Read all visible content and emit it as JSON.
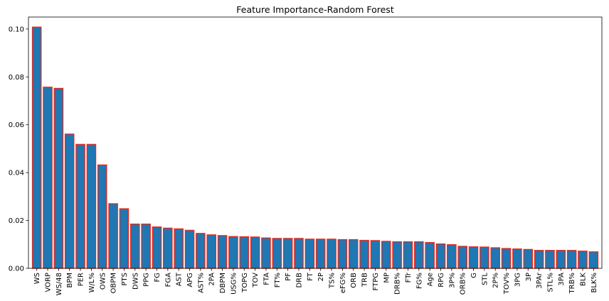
{
  "chart_data": {
    "type": "bar",
    "title": "Feature Importance-Random Forest",
    "xlabel": "",
    "ylabel": "",
    "ylim": [
      0,
      0.105
    ],
    "yticks": [
      "0.00",
      "0.02",
      "0.04",
      "0.06",
      "0.08",
      "0.10"
    ],
    "ytick_values": [
      0,
      0.02,
      0.04,
      0.06,
      0.08,
      0.1
    ],
    "bar_fill": "#1f77b4",
    "bar_edge": "#e8291c",
    "grid": false,
    "categories": [
      "WS",
      "VORP",
      "WS/48",
      "BPM",
      "PER",
      "W/L%",
      "OWS",
      "OBPM",
      "PTS",
      "DWS",
      "PPG",
      "FG",
      "FGA",
      "AST",
      "APG",
      "AST%",
      "2PA",
      "DBPM",
      "USG%",
      "TOPG",
      "TOV",
      "FTA",
      "FT%",
      "PF",
      "DRB",
      "FT",
      "2P",
      "TS%",
      "eFG%",
      "ORB",
      "TRB",
      "FTPG",
      "MP",
      "DRB%",
      "FTr",
      "FG%",
      "Age",
      "RPG",
      "3P%",
      "ORB%",
      "G",
      "STL",
      "2P%",
      "TOV%",
      "3PG",
      "3P",
      "3PAr",
      "STL%",
      "3PA",
      "TRB%",
      "BLK",
      "BLK%"
    ],
    "values": [
      0.1008,
      0.0757,
      0.0752,
      0.0561,
      0.0518,
      0.0518,
      0.0432,
      0.027,
      0.0249,
      0.0185,
      0.0185,
      0.0173,
      0.0168,
      0.0165,
      0.0159,
      0.0146,
      0.014,
      0.0137,
      0.0133,
      0.0132,
      0.0131,
      0.0127,
      0.0125,
      0.0125,
      0.0125,
      0.0122,
      0.0122,
      0.0122,
      0.012,
      0.012,
      0.0117,
      0.0116,
      0.0113,
      0.0111,
      0.0111,
      0.0111,
      0.0108,
      0.0102,
      0.0099,
      0.0092,
      0.009,
      0.0089,
      0.0086,
      0.0083,
      0.0081,
      0.0079,
      0.0075,
      0.0075,
      0.0075,
      0.0075,
      0.0072,
      0.0069
    ]
  }
}
